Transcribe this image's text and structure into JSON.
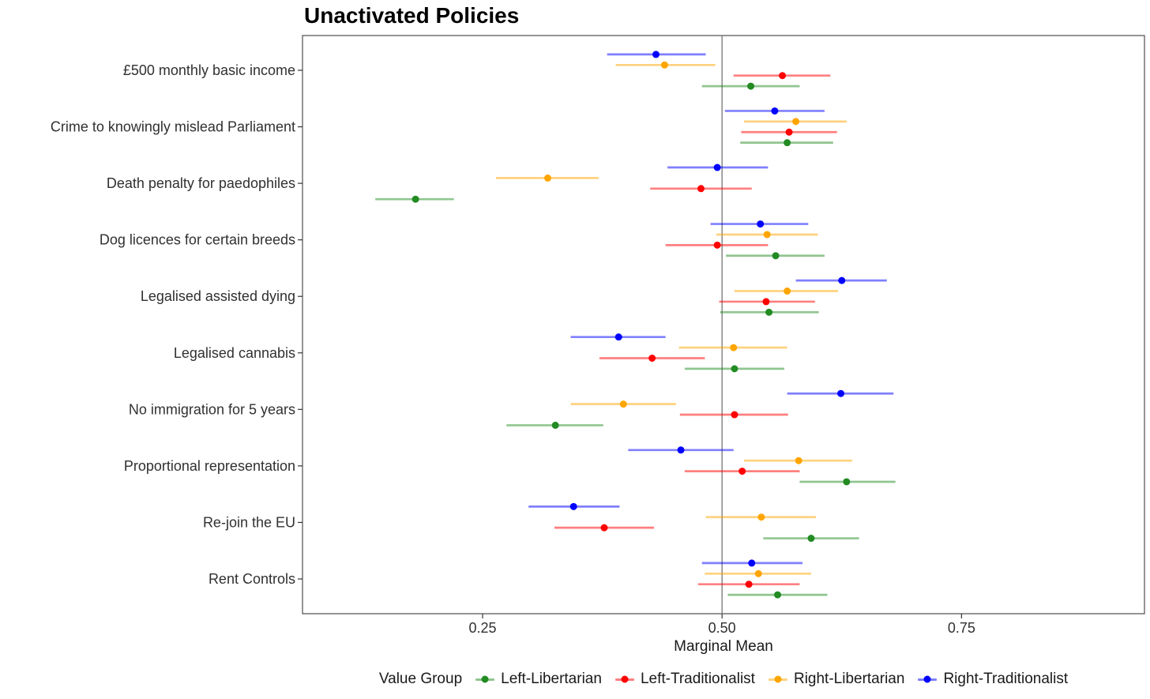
{
  "chart_data": {
    "type": "scatter",
    "subtype": "dot-and-whisker",
    "title": "Unactivated Policies",
    "xlabel": "Marginal Mean",
    "legend_title": "Value Group",
    "legend_position": "bottom",
    "grid": false,
    "reference_line_x": 0.5,
    "xlim": [
      0.062,
      0.941
    ],
    "x_ticks": [
      0.25,
      0.5,
      0.75
    ],
    "x_tick_labels": [
      "0.25",
      "0.50",
      "0.75"
    ],
    "categories": [
      "£500 monthly basic income",
      "Crime to knowingly mislead Parliament",
      "Death penalty for paedophiles",
      "Dog licences for certain breeds",
      "Legalised assisted dying",
      "Legalised cannabis",
      "No immigration for 5 years",
      "Proportional representation",
      "Re-join the EU",
      "Rent Controls"
    ],
    "row_order_top_to_bottom": [
      "Right-Traditionalist",
      "Right-Libertarian",
      "Left-Traditionalist",
      "Left-Libertarian"
    ],
    "series": [
      {
        "name": "Left-Libertarian",
        "color": "#228B22",
        "means": [
          0.53,
          0.568,
          0.18,
          0.556,
          0.549,
          0.513,
          0.326,
          0.63,
          0.593,
          0.558
        ],
        "lower": [
          0.479,
          0.519,
          0.138,
          0.504,
          0.498,
          0.461,
          0.275,
          0.581,
          0.543,
          0.506
        ],
        "upper": [
          0.581,
          0.616,
          0.22,
          0.607,
          0.601,
          0.565,
          0.376,
          0.681,
          0.643,
          0.61
        ]
      },
      {
        "name": "Left-Traditionalist",
        "color": "#FF0000",
        "means": [
          0.563,
          0.57,
          0.478,
          0.495,
          0.546,
          0.427,
          0.513,
          0.521,
          0.377,
          0.528
        ],
        "lower": [
          0.512,
          0.52,
          0.425,
          0.441,
          0.497,
          0.372,
          0.456,
          0.461,
          0.325,
          0.475
        ],
        "upper": [
          0.613,
          0.62,
          0.531,
          0.548,
          0.597,
          0.482,
          0.569,
          0.581,
          0.429,
          0.581
        ]
      },
      {
        "name": "Right-Libertarian",
        "color": "#FFA500",
        "means": [
          0.44,
          0.577,
          0.318,
          0.547,
          0.568,
          0.512,
          0.397,
          0.58,
          0.541,
          0.538
        ],
        "lower": [
          0.389,
          0.523,
          0.264,
          0.494,
          0.513,
          0.455,
          0.342,
          0.523,
          0.483,
          0.482
        ],
        "upper": [
          0.493,
          0.63,
          0.371,
          0.6,
          0.621,
          0.568,
          0.452,
          0.636,
          0.598,
          0.593
        ]
      },
      {
        "name": "Right-Traditionalist",
        "color": "#0000FF",
        "means": [
          0.431,
          0.555,
          0.495,
          0.54,
          0.625,
          0.392,
          0.624,
          0.457,
          0.345,
          0.531
        ],
        "lower": [
          0.38,
          0.503,
          0.443,
          0.488,
          0.577,
          0.342,
          0.568,
          0.402,
          0.298,
          0.479
        ],
        "upper": [
          0.483,
          0.607,
          0.548,
          0.59,
          0.672,
          0.441,
          0.679,
          0.512,
          0.393,
          0.584
        ]
      }
    ],
    "style_colors": {
      "panel_border": "#4d4d4d",
      "reference_line": "#7f7f7f",
      "axis_text": "#303030",
      "axis_title": "#1a1a1a",
      "tick_mark": "#333333"
    }
  }
}
